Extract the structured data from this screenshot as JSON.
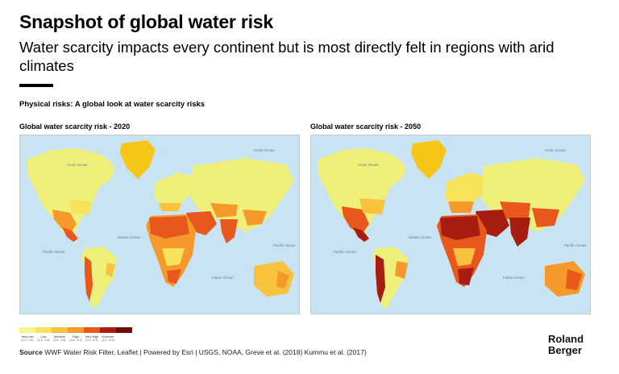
{
  "title": "Snapshot of global water risk",
  "subtitle": "Water scarcity impacts every continent but is most directly felt in regions with arid climates",
  "section_label": "Physical risks: A global look at water scarcity risks",
  "maps": [
    {
      "title": "Global water scarcity risk - 2020",
      "ocean_labels": [
        "Arctic Ocean",
        "Arctic Ocean",
        "Atlantic Ocean",
        "Pacific Ocean",
        "Pacific Ocean",
        "Indian Ocean"
      ]
    },
    {
      "title": "Global water scarcity risk - 2050",
      "ocean_labels": [
        "Arctic Ocean",
        "Arctic Ocean",
        "Atlantic Ocean",
        "Pacific Ocean",
        "Pacific Ocean",
        "Indian Ocean"
      ]
    }
  ],
  "legend": [
    {
      "label": "Very low",
      "range": "(1.0 - 1.4)",
      "color": "#f4f58c"
    },
    {
      "label": "Low",
      "range": "(1.4 - 1.8)",
      "color": "#f7e35a"
    },
    {
      "label": "Medium",
      "range": "(1.8 - 2.6)",
      "color": "#f9c23c"
    },
    {
      "label": "High",
      "range": "(2.6 - 3.4)",
      "color": "#f59a2a"
    },
    {
      "label": "Very high",
      "range": "(3.4 - 4.2)",
      "color": "#e8571c"
    },
    {
      "label": "Extreme",
      "range": "(4.2 - 5.0)",
      "color": "#a81d12"
    },
    {
      "label": "",
      "range": "",
      "color": "#6e0d0a"
    }
  ],
  "source": {
    "label": "Source",
    "text": " WWF Water Risk Filter, Leaflet | Powered by Esri | USGS, NOAA, Greve et al. (2018) Kummu et al. (2017)"
  },
  "brand": {
    "line1": "Roland",
    "line2": "Berger"
  },
  "colors": {
    "ocean": "#c8e3f1",
    "land_base": "#eef07a",
    "greenland": "#f5c518"
  }
}
